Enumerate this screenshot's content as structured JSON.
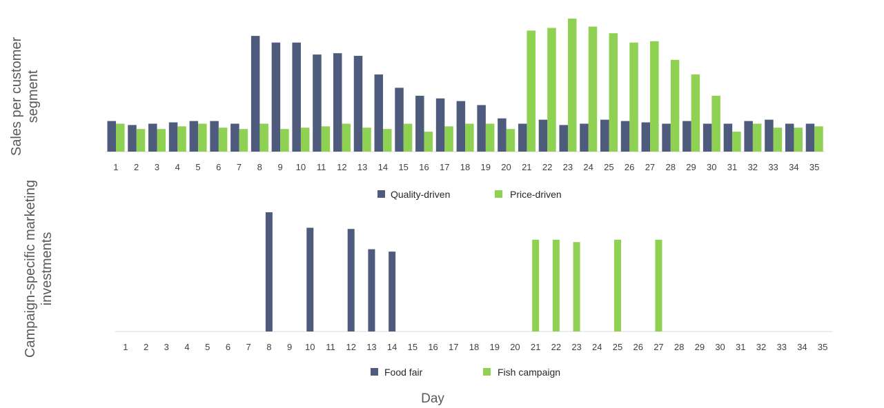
{
  "colors": {
    "series_a": "#4e5b7c",
    "series_b": "#8ed153",
    "axis": "#d9d9d9"
  },
  "chart_data": [
    {
      "type": "bar",
      "ylabel": "Sales per customer segment",
      "xlabel": "",
      "categories": [
        "1",
        "2",
        "3",
        "4",
        "5",
        "6",
        "7",
        "8",
        "9",
        "10",
        "11",
        "12",
        "13",
        "14",
        "15",
        "16",
        "17",
        "18",
        "19",
        "20",
        "21",
        "22",
        "23",
        "24",
        "25",
        "26",
        "27",
        "28",
        "29",
        "30",
        "31",
        "32",
        "33",
        "34",
        "35"
      ],
      "ylim": [
        0,
        100
      ],
      "grid": false,
      "legend": "bottom",
      "series": [
        {
          "name": "Quality-driven",
          "values": [
            23,
            20,
            21,
            22,
            23,
            23,
            21,
            87,
            82,
            82,
            73,
            74,
            72,
            58,
            48,
            42,
            40,
            38,
            35,
            25,
            21,
            24,
            20,
            21,
            24,
            23,
            22,
            21,
            23,
            21,
            21,
            23,
            24,
            21,
            21
          ]
        },
        {
          "name": "Price-driven",
          "values": [
            21,
            17,
            17,
            19,
            21,
            18,
            17,
            21,
            17,
            18,
            19,
            21,
            18,
            17,
            21,
            15,
            19,
            21,
            21,
            17,
            91,
            93,
            100,
            94,
            89,
            82,
            83,
            69,
            58,
            42,
            15,
            21,
            18,
            18,
            19
          ]
        }
      ]
    },
    {
      "type": "bar",
      "ylabel": "Campaign-specific marketing investments",
      "xlabel": "Day",
      "categories": [
        "1",
        "2",
        "3",
        "4",
        "5",
        "6",
        "7",
        "8",
        "9",
        "10",
        "11",
        "12",
        "13",
        "14",
        "15",
        "16",
        "17",
        "18",
        "19",
        "20",
        "21",
        "22",
        "23",
        "24",
        "25",
        "26",
        "27",
        "28",
        "29",
        "30",
        "31",
        "32",
        "33",
        "34",
        "35"
      ],
      "ylim": [
        0,
        100
      ],
      "grid": false,
      "legend": "bottom",
      "series": [
        {
          "name": "Food fair",
          "values": [
            0,
            0,
            0,
            0,
            0,
            0,
            0,
            100,
            0,
            87,
            0,
            86,
            69,
            67,
            0,
            0,
            0,
            0,
            0,
            0,
            0,
            0,
            0,
            0,
            0,
            0,
            0,
            0,
            0,
            0,
            0,
            0,
            0,
            0,
            0
          ]
        },
        {
          "name": "Fish campaign",
          "values": [
            0,
            0,
            0,
            0,
            0,
            0,
            0,
            0,
            0,
            0,
            0,
            0,
            0,
            0,
            0,
            0,
            0,
            0,
            0,
            0,
            77,
            77,
            75,
            0,
            77,
            0,
            77,
            0,
            0,
            0,
            0,
            0,
            0,
            0,
            0
          ]
        }
      ]
    }
  ]
}
